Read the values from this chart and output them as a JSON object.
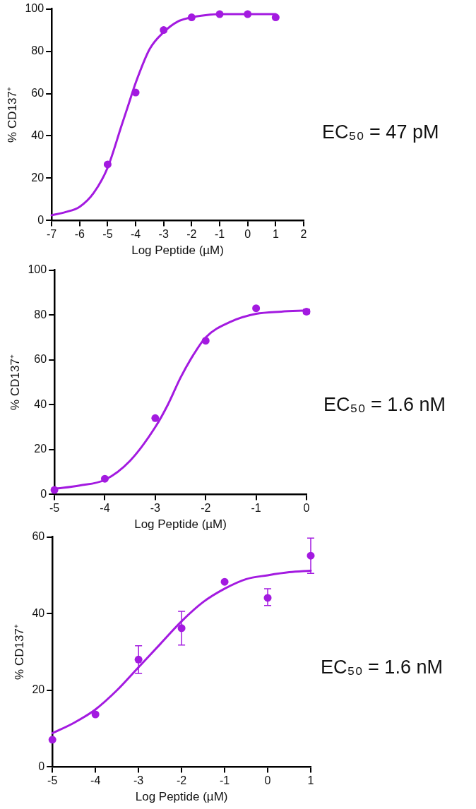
{
  "chart_data": [
    {
      "type": "scatter",
      "xlabel": "Log Peptide (µM)",
      "ylabel": "% CD137⁺",
      "xlim": [
        -7,
        2
      ],
      "xticks": [
        -7,
        -6,
        -5,
        -4,
        -3,
        -2,
        -1,
        0,
        1,
        2
      ],
      "ylim": [
        0,
        100
      ],
      "yticks": [
        0,
        20,
        40,
        60,
        80,
        100
      ],
      "grid": false,
      "legend": false,
      "annotations": [
        "EC₅₀ = 47 pM"
      ],
      "series": [
        {
          "color": "#a31ae0",
          "marker": "circle",
          "x": [
            -5,
            -4,
            -3,
            -2,
            -1,
            0,
            1
          ],
          "values": [
            26.5,
            60.5,
            90,
            96,
            97.5,
            97.5,
            96
          ]
        },
        {
          "type": "line",
          "marker": "none",
          "color": "#a31ae0",
          "x": [
            -7,
            -6.5,
            -6,
            -5.5,
            -5,
            -4.5,
            -4.25,
            -4,
            -3.5,
            -3,
            -2.5,
            -2,
            -1.5,
            -1,
            0,
            1
          ],
          "values": [
            2.5,
            4,
            6.5,
            13,
            25,
            45,
            55,
            65,
            81,
            89,
            94,
            96,
            97,
            97.5,
            97.5,
            97.5
          ]
        }
      ]
    },
    {
      "type": "scatter",
      "xlabel": "Log Peptide (µM)",
      "ylabel": "% CD137⁺",
      "xlim": [
        -5,
        0
      ],
      "xticks": [
        -5,
        -4,
        -3,
        -2,
        -1,
        0
      ],
      "ylim": [
        0,
        100
      ],
      "yticks": [
        0,
        20,
        40,
        60,
        80,
        100
      ],
      "grid": false,
      "legend": false,
      "annotations": [
        "EC₅₀ = 1.6 nM"
      ],
      "series": [
        {
          "color": "#a31ae0",
          "marker": "circle",
          "x": [
            -5,
            -4,
            -3,
            -2,
            -1,
            0
          ],
          "values": [
            2,
            7,
            34,
            68.5,
            83,
            81.5
          ],
          "errors": [
            null,
            null,
            null,
            null,
            null,
            1
          ]
        },
        {
          "type": "line",
          "marker": "none",
          "color": "#a31ae0",
          "x": [
            -5,
            -4.5,
            -4,
            -3.5,
            -3,
            -2.75,
            -2.5,
            -2.25,
            -2,
            -1.5,
            -1,
            -0.5,
            0
          ],
          "values": [
            2.5,
            4,
            6.5,
            15,
            30,
            40,
            52,
            62,
            70,
            77,
            80.5,
            81.5,
            82
          ]
        }
      ]
    },
    {
      "type": "scatter",
      "xlabel": "Log Peptide (µM)",
      "ylabel": "% CD137⁺",
      "xlim": [
        -5,
        1
      ],
      "xticks": [
        -5,
        -4,
        -3,
        -2,
        -1,
        0,
        1
      ],
      "ylim": [
        0,
        60
      ],
      "yticks": [
        0,
        20,
        40,
        60
      ],
      "grid": false,
      "legend": false,
      "annotations": [
        "EC₅₀ = 1.6 nM"
      ],
      "series": [
        {
          "color": "#a31ae0",
          "marker": "circle",
          "x": [
            -5,
            -4,
            -3,
            -2,
            -1,
            0,
            1
          ],
          "values": [
            7.1,
            13.7,
            28,
            36.2,
            48.3,
            44.1,
            55.1
          ],
          "errors": [
            null,
            null,
            [
              24.4,
              31.6
            ],
            [
              31.8,
              40.6
            ],
            null,
            [
              42.1,
              46.5
            ],
            [
              50.5,
              59.7
            ]
          ]
        },
        {
          "type": "line",
          "marker": "none",
          "color": "#a31ae0",
          "x": [
            -5,
            -4.5,
            -4,
            -3.5,
            -3,
            -2.5,
            -2,
            -1.5,
            -1,
            -0.5,
            0,
            0.5,
            1
          ],
          "values": [
            8.8,
            11.5,
            15,
            20,
            26,
            32,
            38,
            43,
            46.5,
            49,
            50,
            50.8,
            51.2
          ]
        }
      ]
    }
  ]
}
